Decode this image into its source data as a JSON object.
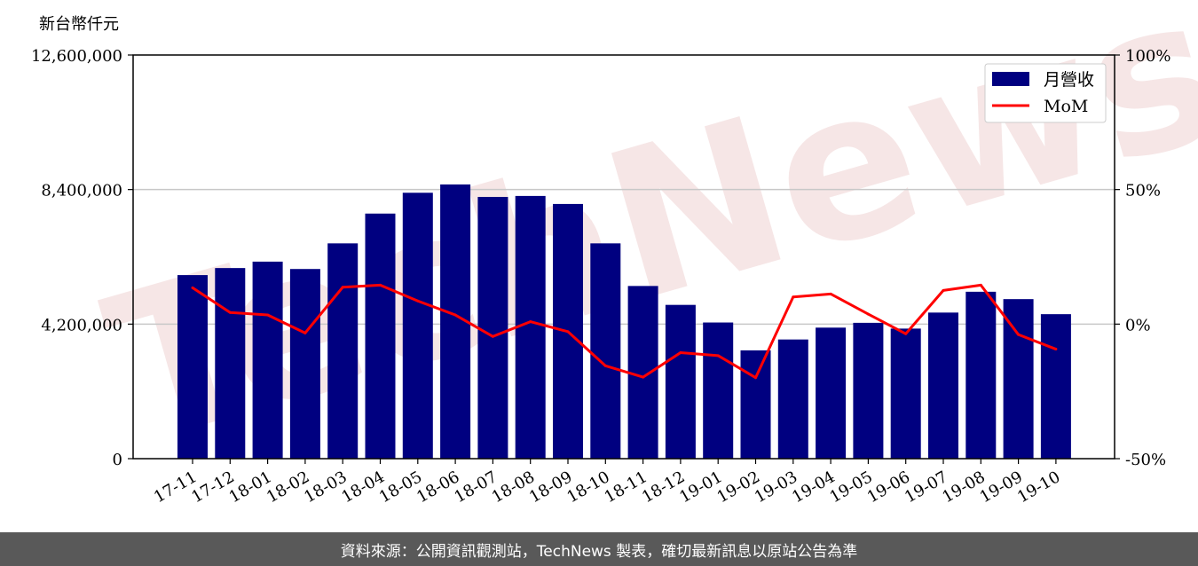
{
  "footer": {
    "source_note": "資料來源：公開資訊觀測站，TechNews 製表，確切最新訊息以原站公告為準"
  },
  "watermark": "TechNews",
  "colors": {
    "bar": "#000080",
    "line": "#ff0000",
    "grid": "#c8c8c8",
    "footer_bg": "#595959"
  },
  "chart_data": {
    "type": "bar",
    "unit_label": "新台幣仟元",
    "categories": [
      "17-11",
      "17-12",
      "18-01",
      "18-02",
      "18-03",
      "18-04",
      "18-05",
      "18-06",
      "18-07",
      "18-08",
      "18-09",
      "18-10",
      "18-11",
      "18-12",
      "19-01",
      "19-02",
      "19-03",
      "19-04",
      "19-05",
      "19-06",
      "19-07",
      "19-08",
      "19-09",
      "19-10"
    ],
    "series": [
      {
        "name": "月營收",
        "type": "bar",
        "axis": "left",
        "values": [
          5730000,
          5950000,
          6150000,
          5920000,
          6720000,
          7650000,
          8300000,
          8560000,
          8170000,
          8200000,
          7950000,
          6720000,
          5390000,
          4800000,
          4250000,
          3380000,
          3720000,
          4090000,
          4240000,
          4060000,
          4560000,
          5210000,
          4980000,
          4510000
        ]
      },
      {
        "name": "MoM",
        "type": "line",
        "axis": "right",
        "values": [
          13.5,
          4.3,
          3.4,
          -3.3,
          13.7,
          14.5,
          8.6,
          3.4,
          -4.6,
          0.9,
          -2.8,
          -15.5,
          -19.7,
          -10.6,
          -11.7,
          -19.9,
          10.1,
          11.2,
          3.7,
          -3.6,
          12.5,
          14.5,
          -3.9,
          -9.3
        ]
      }
    ],
    "ylim": [
      0,
      12600000
    ],
    "yticks": [
      0,
      4200000,
      8400000,
      12600000
    ],
    "ytick_labels": [
      "0",
      "4,200,000",
      "8,400,000",
      "12,600,000"
    ],
    "y2lim": [
      -50,
      100
    ],
    "y2ticks": [
      -50,
      0,
      50,
      100
    ],
    "y2tick_labels": [
      "-50%",
      "0%",
      "50%",
      "100%"
    ],
    "grid": "horizontal",
    "legend_position": "top-right"
  }
}
